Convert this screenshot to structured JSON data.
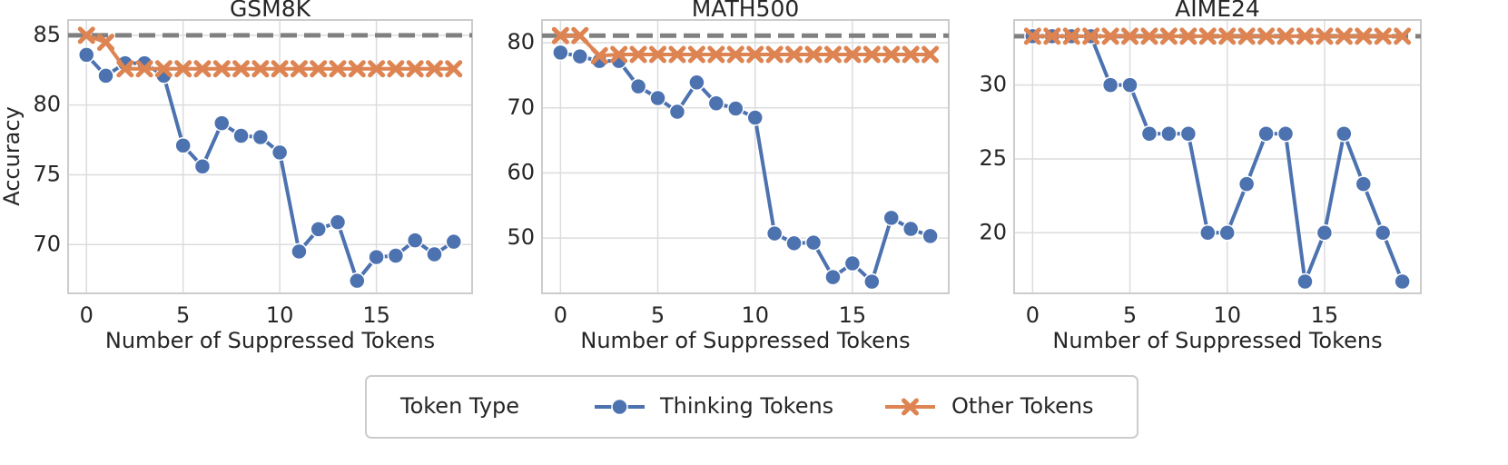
{
  "chart_data": [
    {
      "type": "line",
      "title": "GSM8K",
      "x_label": "Number of Suppressed Tokens",
      "y_label": "Accuracy",
      "x": [
        0,
        1,
        2,
        3,
        4,
        5,
        6,
        7,
        8,
        9,
        10,
        11,
        12,
        13,
        14,
        15,
        16,
        17,
        18,
        19
      ],
      "series": [
        {
          "name": "Thinking Tokens",
          "color": "#4c72b0",
          "marker": "o",
          "values": [
            83.6,
            82.1,
            83.0,
            83.0,
            82.1,
            77.1,
            75.6,
            78.7,
            77.8,
            77.7,
            76.6,
            69.5,
            71.1,
            71.6,
            67.4,
            69.1,
            69.2,
            70.3,
            69.3,
            70.2
          ]
        },
        {
          "name": "Other Tokens",
          "color": "#dd8452",
          "marker": "x",
          "values": [
            85.0,
            84.5,
            82.6,
            82.6,
            82.6,
            82.6,
            82.6,
            82.6,
            82.6,
            82.6,
            82.6,
            82.6,
            82.6,
            82.6,
            82.6,
            82.6,
            82.6,
            82.6,
            82.6,
            82.6
          ]
        }
      ],
      "reference_line": 85.0,
      "xlim": [
        -0.95,
        19.95
      ],
      "ylim": [
        66.5,
        86.1
      ],
      "xticks": [
        0,
        5,
        10,
        15
      ],
      "yticks": [
        70,
        75,
        80,
        85
      ],
      "grid": true,
      "legend_title": "Token Type"
    },
    {
      "type": "line",
      "title": "MATH500",
      "x_label": "Number of Suppressed Tokens",
      "x": [
        0,
        1,
        2,
        3,
        4,
        5,
        6,
        7,
        8,
        9,
        10,
        11,
        12,
        13,
        14,
        15,
        16,
        17,
        18,
        19
      ],
      "series": [
        {
          "color": "#4c72b0",
          "marker": "o",
          "values": [
            78.5,
            77.9,
            77.2,
            77.2,
            73.3,
            71.5,
            69.4,
            73.9,
            70.7,
            69.9,
            68.5,
            50.7,
            49.2,
            49.3,
            44.0,
            46.1,
            43.3,
            53.1,
            51.4,
            50.3
          ]
        },
        {
          "color": "#dd8452",
          "marker": "x",
          "values": [
            81.1,
            81.1,
            78.0,
            78.2,
            78.2,
            78.2,
            78.2,
            78.2,
            78.2,
            78.2,
            78.2,
            78.2,
            78.2,
            78.2,
            78.2,
            78.2,
            78.2,
            78.2,
            78.2,
            78.2
          ]
        }
      ],
      "reference_line": 81.1,
      "xlim": [
        -0.95,
        19.95
      ],
      "ylim": [
        41.5,
        83.5
      ],
      "xticks": [
        0,
        5,
        10,
        15
      ],
      "yticks": [
        50,
        60,
        70,
        80
      ],
      "grid": true
    },
    {
      "type": "line",
      "title": "AIME24",
      "x_label": "Number of Suppressed Tokens",
      "x": [
        0,
        1,
        2,
        3,
        4,
        5,
        6,
        7,
        8,
        9,
        10,
        11,
        12,
        13,
        14,
        15,
        16,
        17,
        18,
        19
      ],
      "series": [
        {
          "color": "#4c72b0",
          "marker": "o",
          "values": [
            33.3,
            33.3,
            33.3,
            33.3,
            30.0,
            30.0,
            26.7,
            26.7,
            26.7,
            20.0,
            20.0,
            23.3,
            26.7,
            26.7,
            16.7,
            20.0,
            26.7,
            23.3,
            20.0,
            16.7
          ]
        },
        {
          "color": "#dd8452",
          "marker": "x",
          "values": [
            33.3,
            33.3,
            33.3,
            33.3,
            33.3,
            33.3,
            33.3,
            33.3,
            33.3,
            33.3,
            33.3,
            33.3,
            33.3,
            33.3,
            33.3,
            33.3,
            33.3,
            33.3,
            33.3,
            33.3
          ]
        }
      ],
      "reference_line": 33.3,
      "xlim": [
        -0.95,
        19.95
      ],
      "ylim": [
        15.9,
        34.4
      ],
      "xticks": [
        0,
        5,
        10,
        15
      ],
      "yticks": [
        20,
        25,
        30
      ],
      "grid": true
    }
  ]
}
